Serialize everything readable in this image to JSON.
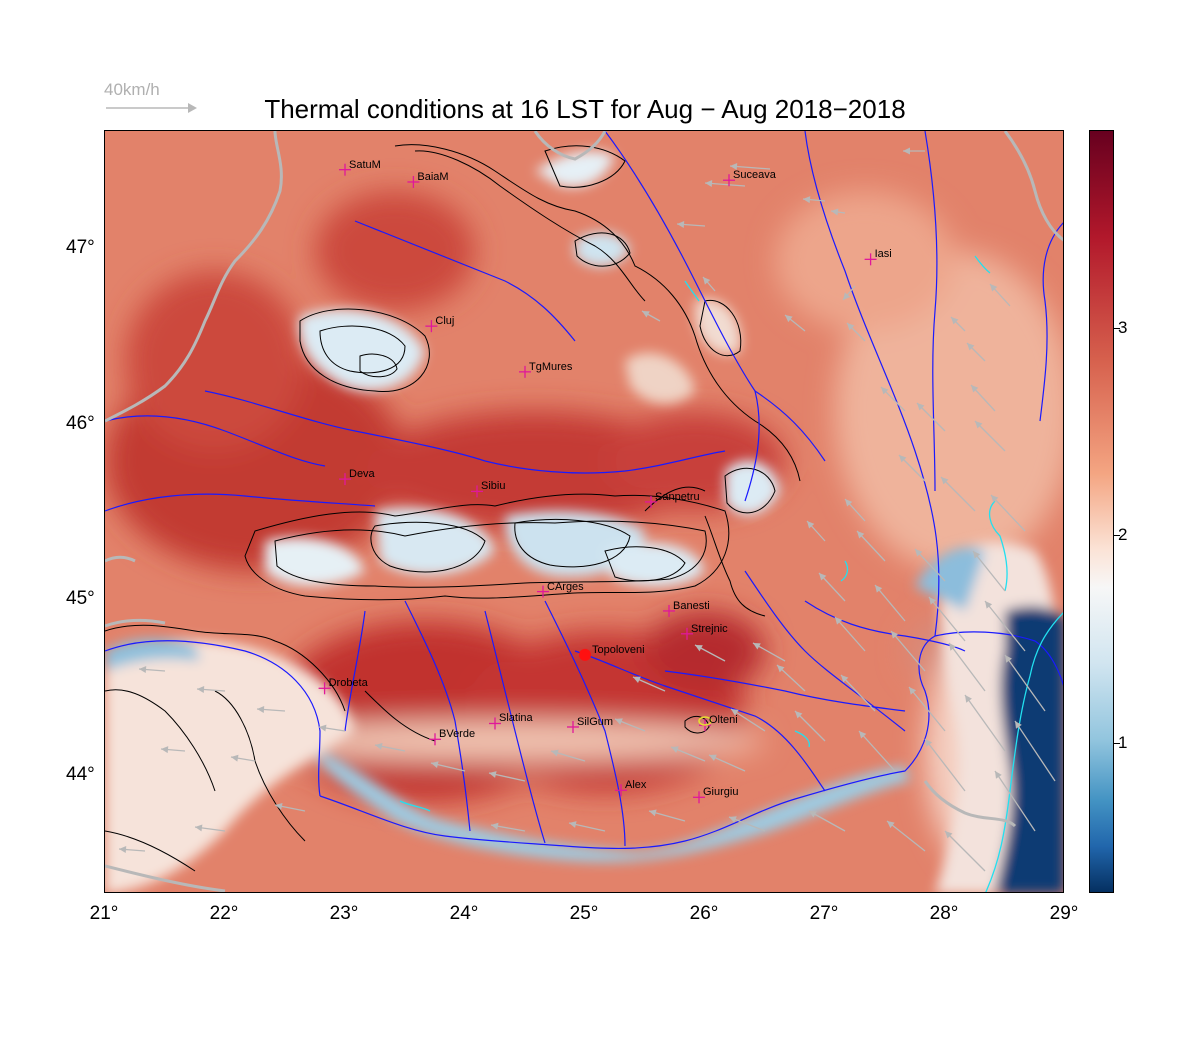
{
  "title": "Thermal conditions at 16 LST for Aug − Aug  2018−2018",
  "wind_legend": {
    "label": "40km/h"
  },
  "axes": {
    "lon_labels": [
      "21°",
      "22°",
      "23°",
      "24°",
      "25°",
      "26°",
      "27°",
      "28°",
      "29°"
    ],
    "lon_values": [
      21,
      22,
      23,
      24,
      25,
      26,
      27,
      28,
      29
    ],
    "lat_labels": [
      "47°",
      "46°",
      "45°",
      "44°"
    ],
    "lat_values": [
      47,
      46,
      45,
      44
    ],
    "lon_range": [
      21,
      29
    ],
    "lat_range": [
      43.33,
      47.67
    ]
  },
  "colorbar": {
    "labels": [
      "3",
      "2",
      "1"
    ],
    "values": [
      3,
      2,
      1
    ],
    "range": [
      0.28,
      3.95
    ],
    "colormap": "RdBu_r"
  },
  "cities": [
    {
      "name": "SatuM",
      "lon": 23.0,
      "lat": 47.45
    },
    {
      "name": "BaiaM",
      "lon": 23.57,
      "lat": 47.38
    },
    {
      "name": "Suceava",
      "lon": 26.2,
      "lat": 47.39
    },
    {
      "name": "Iasi",
      "lon": 27.38,
      "lat": 46.94
    },
    {
      "name": "Cluj",
      "lon": 23.72,
      "lat": 46.56
    },
    {
      "name": "TgMures",
      "lon": 24.5,
      "lat": 46.3
    },
    {
      "name": "Deva",
      "lon": 23.0,
      "lat": 45.69
    },
    {
      "name": "Sibiu",
      "lon": 24.1,
      "lat": 45.62
    },
    {
      "name": "Sanpetru",
      "lon": 25.55,
      "lat": 45.56
    },
    {
      "name": "CArges",
      "lon": 24.65,
      "lat": 45.05
    },
    {
      "name": "Banesti",
      "lon": 25.7,
      "lat": 44.94
    },
    {
      "name": "Strejnic",
      "lon": 25.85,
      "lat": 44.81
    },
    {
      "name": "Drobeta",
      "lon": 22.83,
      "lat": 44.5
    },
    {
      "name": "Slatina",
      "lon": 24.25,
      "lat": 44.3
    },
    {
      "name": "SilGum",
      "lon": 24.9,
      "lat": 44.28
    },
    {
      "name": "Olteni",
      "lon": 26.0,
      "lat": 44.29
    },
    {
      "name": "BVerde",
      "lon": 23.75,
      "lat": 44.21
    },
    {
      "name": "Alex",
      "lon": 25.3,
      "lat": 43.92
    },
    {
      "name": "Giurgiu",
      "lon": 25.95,
      "lat": 43.88
    }
  ],
  "highlight_site": {
    "name": "Topoloveni",
    "lon": 25.0,
    "lat": 44.69
  },
  "colors": {
    "city_marker": "#e0189a",
    "river": "#1a1aff",
    "border": "#b8b8b8",
    "wind_arrow": "#b8b8b8",
    "contour": "#000000",
    "coast": "#22e0f0",
    "site": "#ff1010"
  }
}
